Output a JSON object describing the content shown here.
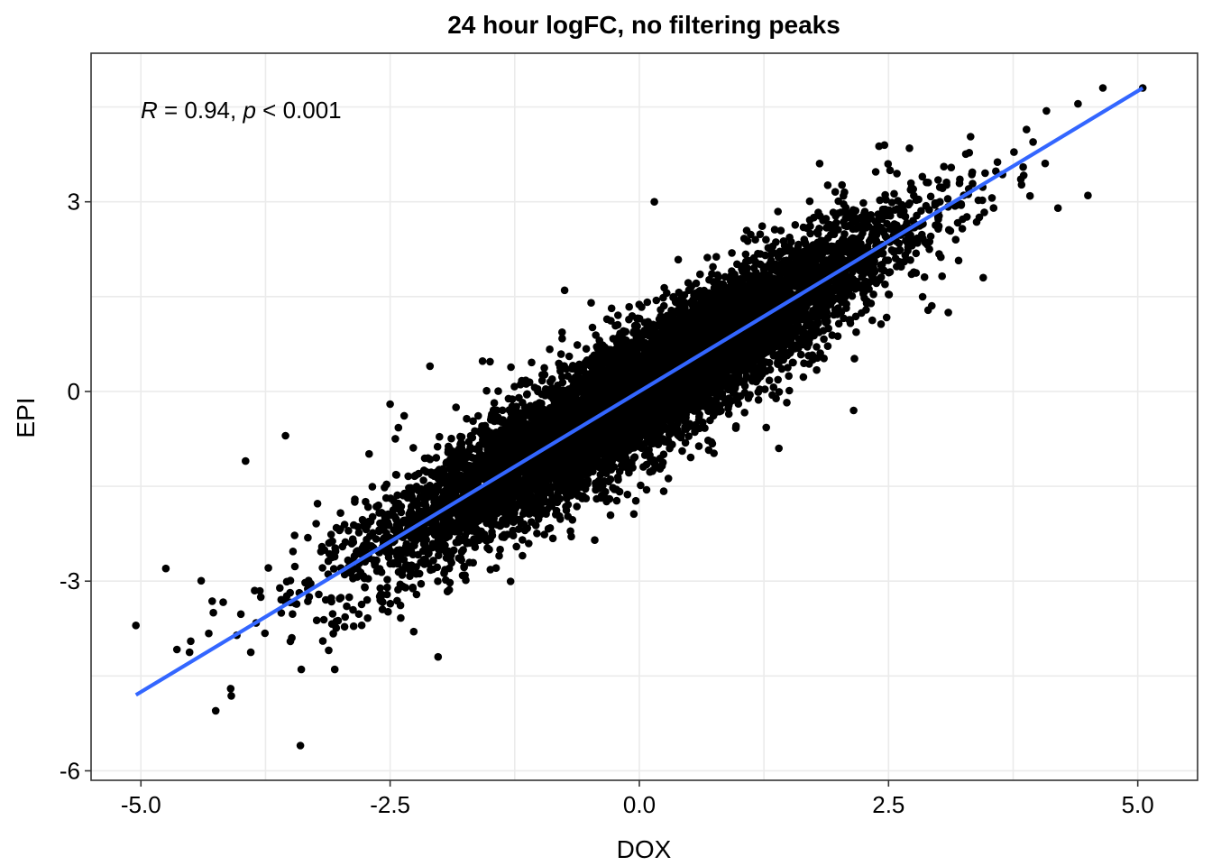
{
  "chart_data": {
    "type": "scatter",
    "title": "24 hour logFC, no filtering peaks",
    "xlabel": "DOX",
    "ylabel": "EPI",
    "xlim": [
      -5.5,
      5.6
    ],
    "ylim": [
      -6.15,
      5.35
    ],
    "x_ticks": [
      -5.0,
      -2.5,
      0.0,
      2.5,
      5.0
    ],
    "x_tick_labels": [
      "-5.0",
      "-2.5",
      "0.0",
      "2.5",
      "5.0"
    ],
    "y_ticks": [
      -6,
      -3,
      0,
      3
    ],
    "y_tick_labels": [
      "-6",
      "-3",
      "0",
      "3"
    ],
    "grid": true,
    "annotation": {
      "r_symbol": "R",
      "r_text": " = 0.94, ",
      "p_symbol": "p",
      "p_text": " < 0.001"
    },
    "regression_line": {
      "color": "#3366ff",
      "x": [
        -5.05,
        5.05
      ],
      "y": [
        -4.8,
        4.8
      ]
    },
    "point_color": "#000000",
    "points_described": {
      "count_approx": 90000,
      "relationship": "y ≈ 0.95x, residual sd ≈ 0.55",
      "x_range": [
        -5.05,
        5.05
      ]
    },
    "outlier_points": [
      {
        "x": -5.05,
        "y": -3.7
      },
      {
        "x": -4.75,
        "y": -2.8
      },
      {
        "x": -4.5,
        "y": -3.95
      },
      {
        "x": -4.25,
        "y": -5.05
      },
      {
        "x": -4.1,
        "y": -4.7
      },
      {
        "x": -3.4,
        "y": -5.6
      },
      {
        "x": -3.55,
        "y": -0.7
      },
      {
        "x": -3.95,
        "y": -1.1
      },
      {
        "x": -2.5,
        "y": -0.2
      },
      {
        "x": -2.1,
        "y": 0.4
      },
      {
        "x": 0.15,
        "y": 3.0
      },
      {
        "x": -0.75,
        "y": 1.6
      },
      {
        "x": 1.4,
        "y": -0.9
      },
      {
        "x": 2.15,
        "y": -0.3
      },
      {
        "x": 3.1,
        "y": 1.25
      },
      {
        "x": 3.45,
        "y": 1.8
      },
      {
        "x": 4.65,
        "y": 4.8
      },
      {
        "x": 5.05,
        "y": 4.8
      },
      {
        "x": 4.4,
        "y": 4.55
      },
      {
        "x": 4.2,
        "y": 2.9
      },
      {
        "x": 3.85,
        "y": 3.55
      },
      {
        "x": 4.5,
        "y": 3.1
      }
    ]
  }
}
